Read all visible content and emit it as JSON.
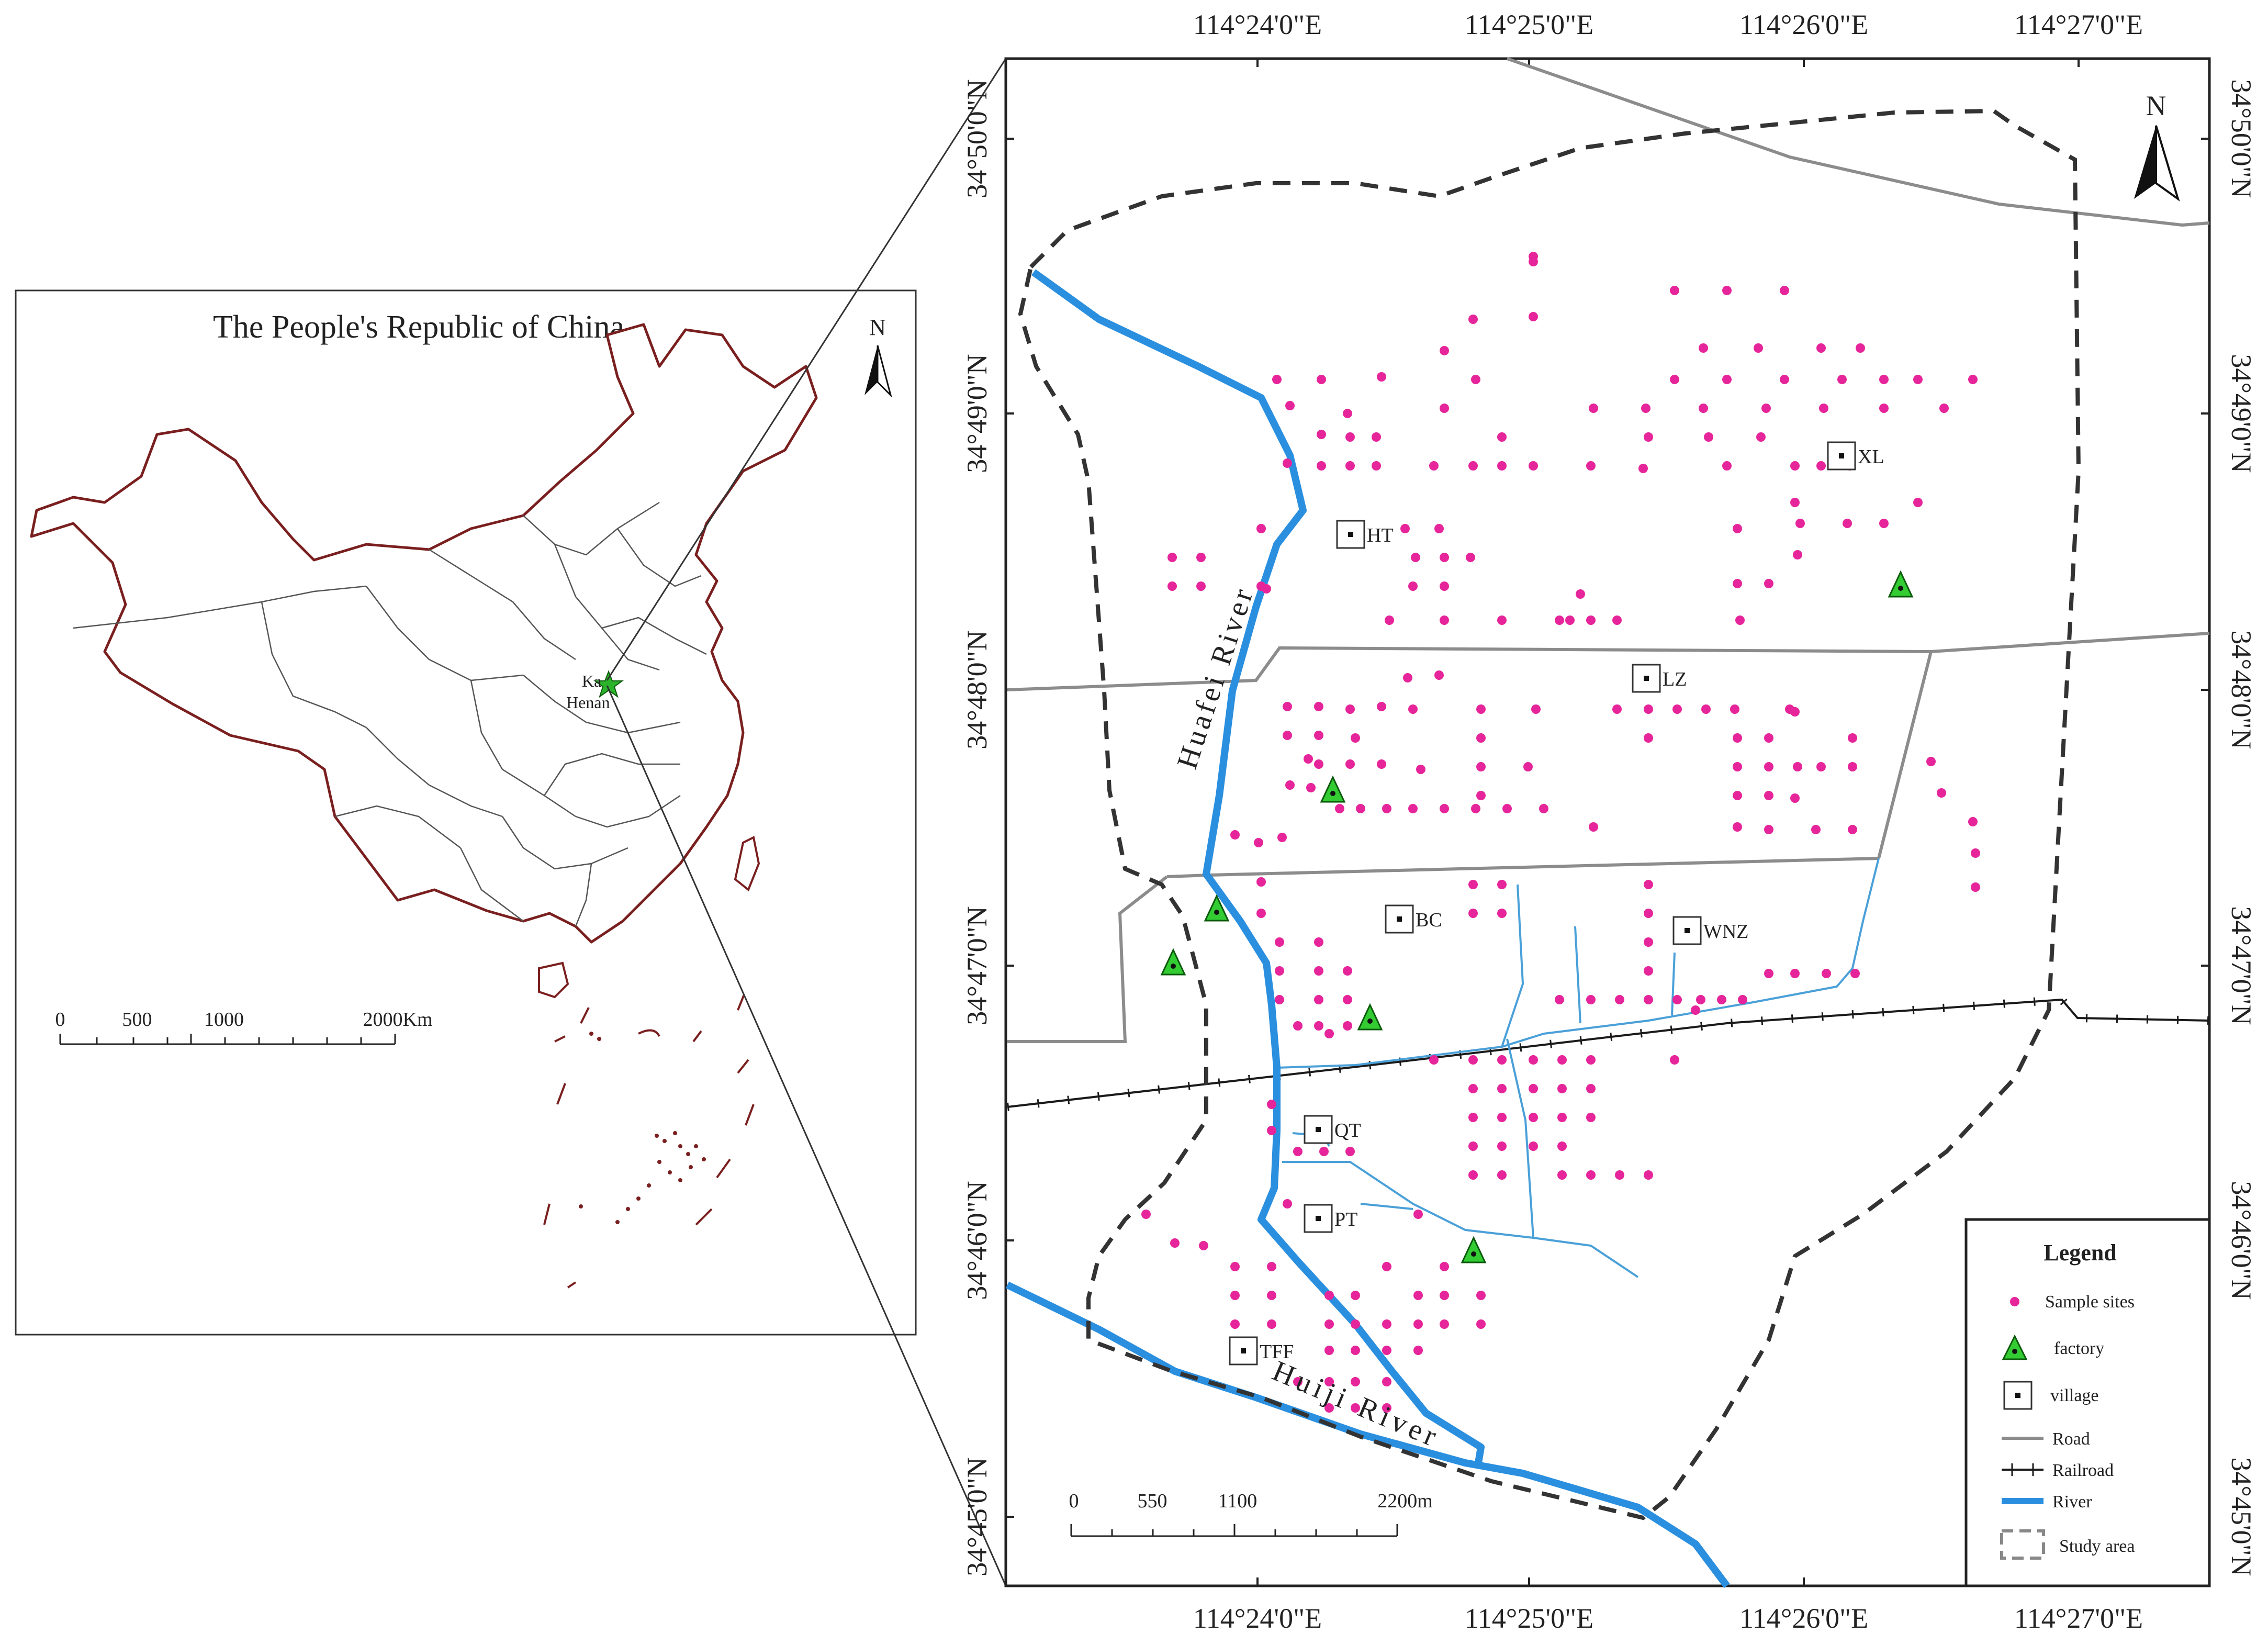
{
  "inset": {
    "title": "The People's Republic of China",
    "north_label": "N",
    "location_labels": {
      "kaifeng": "Ka",
      "henan": "Henan"
    },
    "scale": {
      "ticks": [
        "0",
        "500",
        "1000",
        "2000Km"
      ]
    }
  },
  "main": {
    "north_label": "N",
    "longitude_labels": [
      "114°24'0\"E",
      "114°25'0\"E",
      "114°26'0\"E",
      "114°27'0\"E"
    ],
    "latitude_labels": [
      "34°50'0\"N",
      "34°49'0\"N",
      "34°48'0\"N",
      "34°47'0\"N",
      "34°46'0\"N",
      "34°45'0\"N"
    ],
    "rivers": {
      "huafei": "Huafei River",
      "huiji": "Huiji River"
    },
    "villages": [
      "HT",
      "XL",
      "LZ",
      "BC",
      "WNZ",
      "QT",
      "PT",
      "TFF"
    ],
    "scale": {
      "ticks": [
        "0",
        "550",
        "1100",
        "2200m"
      ]
    }
  },
  "legend": {
    "title": "Legend",
    "items": [
      "Sample sites",
      "factory",
      "village",
      "Road",
      "Railroad",
      "River",
      "Study area"
    ]
  },
  "colors": {
    "sample": "#e6259a",
    "factory": "#33cc33",
    "river": "#2b8fdf",
    "stream": "#4aa0d8",
    "road": "#8c8c8c",
    "railroad": "#1a1a1a",
    "study_area": "#333333",
    "china_border": "#7a1f1f"
  }
}
